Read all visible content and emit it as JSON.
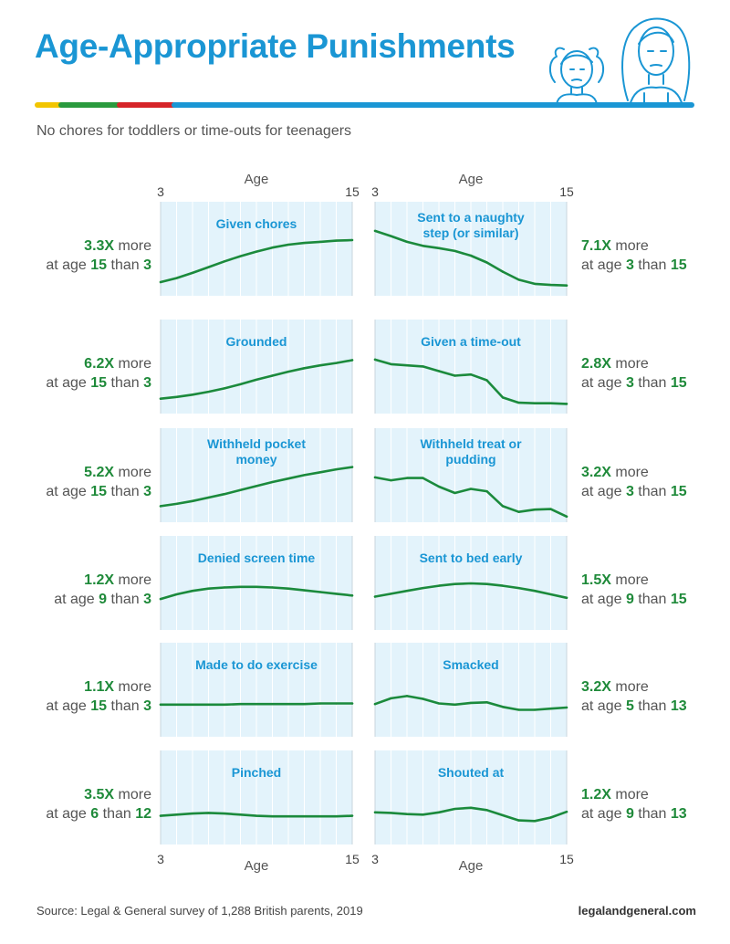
{
  "title": "Age-Appropriate Punishments",
  "subtitle": "No chores for toddlers or time-outs for teenagers",
  "source": "Source: Legal & General survey of 1,288 British parents, 2019",
  "site": "legalandgeneral.com",
  "colors": {
    "title": "#1a96d4",
    "panel_bg": "#e3f3fb",
    "line": "#1b8a3c",
    "highlight": "#1f8a3a",
    "stripe": [
      "#f2c500",
      "#2a9a3e",
      "#d62428",
      "#1a96d4"
    ]
  },
  "axis": {
    "label": "Age",
    "min_label": "3",
    "max_label": "15",
    "xlim": [
      3,
      15
    ]
  },
  "annotation_words": {
    "more": "more",
    "at_age": "at age",
    "than": "than"
  },
  "chart_data": {
    "type": "line",
    "xlabel": "Age",
    "x": [
      3,
      4,
      5,
      6,
      7,
      8,
      9,
      10,
      11,
      12,
      13,
      14,
      15
    ],
    "panels": [
      {
        "title": "Given chores",
        "side": "left",
        "factor": "3.3X",
        "age_a": "15",
        "age_b": "3",
        "values": [
          0.08,
          0.15,
          0.24,
          0.34,
          0.44,
          0.53,
          0.61,
          0.68,
          0.73,
          0.76,
          0.78,
          0.8,
          0.81
        ]
      },
      {
        "title": "Sent to a naughty step (or similar)",
        "side": "right",
        "factor": "7.1X",
        "age_a": "3",
        "age_b": "15",
        "values": [
          0.97,
          0.88,
          0.78,
          0.71,
          0.67,
          0.62,
          0.54,
          0.42,
          0.26,
          0.12,
          0.05,
          0.03,
          0.02
        ]
      },
      {
        "title": "Grounded",
        "side": "left",
        "factor": "6.2X",
        "age_a": "15",
        "age_b": "3",
        "values": [
          0.1,
          0.13,
          0.17,
          0.22,
          0.28,
          0.35,
          0.43,
          0.5,
          0.57,
          0.63,
          0.68,
          0.72,
          0.77
        ]
      },
      {
        "title": "Given a time-out",
        "side": "right",
        "factor": "2.8X",
        "age_a": "3",
        "age_b": "15",
        "values": [
          0.78,
          0.7,
          0.68,
          0.66,
          0.58,
          0.5,
          0.52,
          0.42,
          0.12,
          0.03,
          0.02,
          0.02,
          0.01
        ]
      },
      {
        "title": "Withheld pocket money",
        "side": "left",
        "factor": "5.2X",
        "age_a": "15",
        "age_b": "3",
        "values": [
          0.12,
          0.16,
          0.21,
          0.27,
          0.33,
          0.4,
          0.47,
          0.54,
          0.6,
          0.66,
          0.71,
          0.76,
          0.8
        ]
      },
      {
        "title": "Withheld treat or pudding",
        "side": "right",
        "factor": "3.2X",
        "age_a": "3",
        "age_b": "15",
        "values": [
          0.62,
          0.57,
          0.61,
          0.61,
          0.46,
          0.35,
          0.42,
          0.38,
          0.12,
          0.02,
          0.06,
          0.07,
          -0.06
        ]
      },
      {
        "title": "Denied screen time",
        "side": "left",
        "factor": "1.2X",
        "age_a": "9",
        "age_b": "3",
        "values": [
          0.38,
          0.46,
          0.52,
          0.56,
          0.58,
          0.59,
          0.59,
          0.58,
          0.56,
          0.53,
          0.5,
          0.47,
          0.44
        ]
      },
      {
        "title": "Sent to bed early",
        "side": "right",
        "factor": "1.5X",
        "age_a": "9",
        "age_b": "15",
        "values": [
          0.42,
          0.47,
          0.52,
          0.57,
          0.61,
          0.64,
          0.65,
          0.64,
          0.61,
          0.57,
          0.52,
          0.46,
          0.4
        ]
      },
      {
        "title": "Made to do exercise",
        "side": "left",
        "factor": "1.1X",
        "age_a": "15",
        "age_b": "3",
        "values": [
          0.4,
          0.4,
          0.4,
          0.4,
          0.4,
          0.41,
          0.41,
          0.41,
          0.41,
          0.41,
          0.42,
          0.42,
          0.42
        ]
      },
      {
        "title": "Smacked",
        "side": "right",
        "factor": "3.2X",
        "age_a": "5",
        "age_b": "13",
        "values": [
          0.41,
          0.51,
          0.55,
          0.5,
          0.42,
          0.4,
          0.43,
          0.44,
          0.36,
          0.31,
          0.31,
          0.33,
          0.35
        ]
      },
      {
        "title": "Pinched",
        "side": "left",
        "factor": "3.5X",
        "age_a": "6",
        "age_b": "12",
        "values": [
          0.34,
          0.36,
          0.38,
          0.39,
          0.38,
          0.36,
          0.34,
          0.33,
          0.33,
          0.33,
          0.33,
          0.33,
          0.34
        ]
      },
      {
        "title": "Shouted at",
        "side": "right",
        "factor": "1.2X",
        "age_a": "9",
        "age_b": "13",
        "values": [
          0.4,
          0.39,
          0.37,
          0.36,
          0.4,
          0.46,
          0.48,
          0.44,
          0.35,
          0.26,
          0.25,
          0.31,
          0.41
        ]
      }
    ]
  }
}
